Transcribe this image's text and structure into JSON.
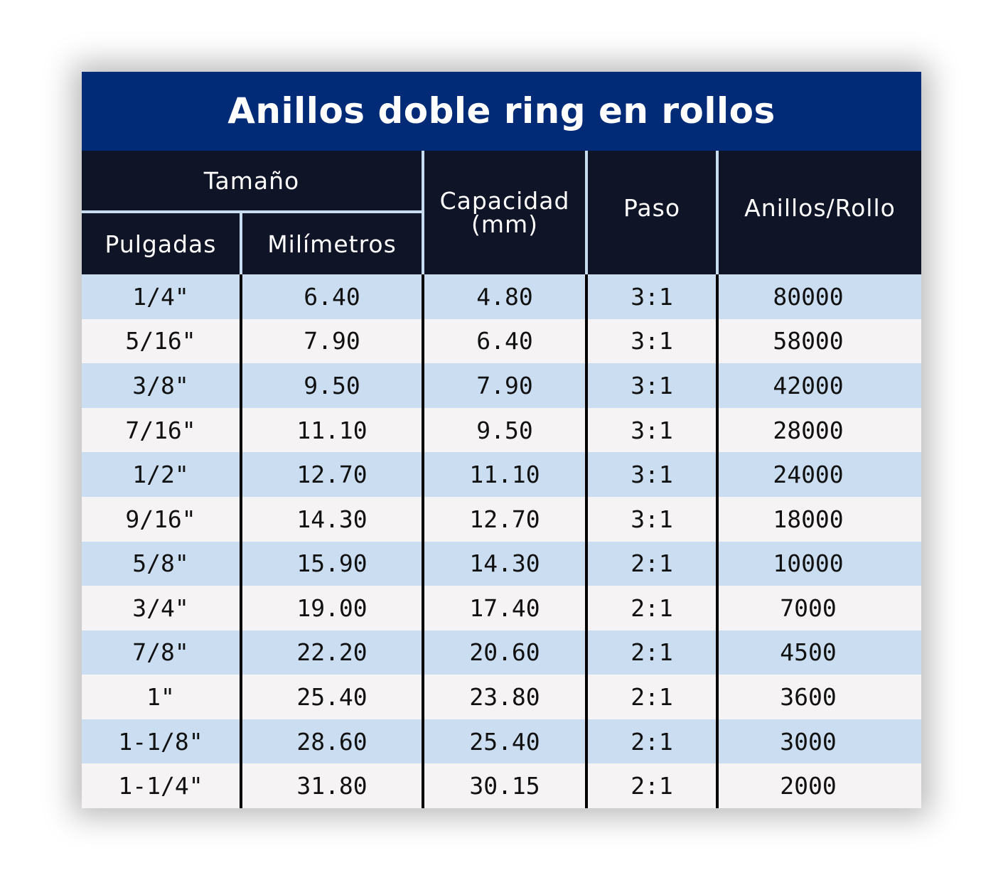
{
  "title": "Anillos doble ring en rollos",
  "headers": {
    "tamano": "Tamaño",
    "pulgadas": "Pulgadas",
    "milimetros": "Milímetros",
    "capacidad": "Capacidad\n(mm)",
    "capacidad_line1": "Capacidad",
    "capacidad_line2": "(mm)",
    "paso": "Paso",
    "anillos_rollo": "Anillos/Rollo"
  },
  "colors": {
    "title_bg": "#012a77",
    "header_bg": "#101427",
    "row_blue": "#cbdef1",
    "row_light": "#f5f3f4"
  },
  "rows": [
    {
      "pulgadas": "1/4\"",
      "milimetros": "6.40",
      "capacidad": "4.80",
      "paso": "3:1",
      "anillos": "80000"
    },
    {
      "pulgadas": "5/16\"",
      "milimetros": "7.90",
      "capacidad": "6.40",
      "paso": "3:1",
      "anillos": "58000"
    },
    {
      "pulgadas": "3/8\"",
      "milimetros": "9.50",
      "capacidad": "7.90",
      "paso": "3:1",
      "anillos": "42000"
    },
    {
      "pulgadas": "7/16\"",
      "milimetros": "11.10",
      "capacidad": "9.50",
      "paso": "3:1",
      "anillos": "28000"
    },
    {
      "pulgadas": "1/2\"",
      "milimetros": "12.70",
      "capacidad": "11.10",
      "paso": "3:1",
      "anillos": "24000"
    },
    {
      "pulgadas": "9/16\"",
      "milimetros": "14.30",
      "capacidad": "12.70",
      "paso": "3:1",
      "anillos": "18000"
    },
    {
      "pulgadas": "5/8\"",
      "milimetros": "15.90",
      "capacidad": "14.30",
      "paso": "2:1",
      "anillos": "10000"
    },
    {
      "pulgadas": "3/4\"",
      "milimetros": "19.00",
      "capacidad": "17.40",
      "paso": "2:1",
      "anillos": "7000"
    },
    {
      "pulgadas": "7/8\"",
      "milimetros": "22.20",
      "capacidad": "20.60",
      "paso": "2:1",
      "anillos": "4500"
    },
    {
      "pulgadas": "1\"",
      "milimetros": "25.40",
      "capacidad": "23.80",
      "paso": "2:1",
      "anillos": "3600"
    },
    {
      "pulgadas": "1-1/8\"",
      "milimetros": "28.60",
      "capacidad": "25.40",
      "paso": "2:1",
      "anillos": "3000"
    },
    {
      "pulgadas": "1-1/4\"",
      "milimetros": "31.80",
      "capacidad": "30.15",
      "paso": "2:1",
      "anillos": "2000"
    }
  ]
}
